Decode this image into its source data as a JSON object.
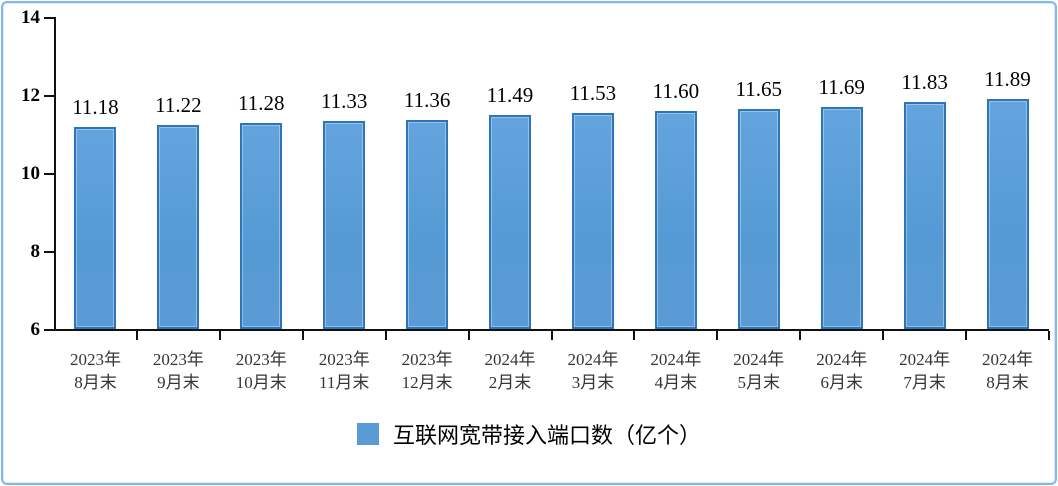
{
  "chart_data": {
    "type": "bar",
    "title": "",
    "categories": [
      "2023年8月末",
      "2023年9月末",
      "2023年10月末",
      "2023年11月末",
      "2023年12月末",
      "2024年2月末",
      "2024年3月末",
      "2024年4月末",
      "2024年5月末",
      "2024年6月末",
      "2024年7月末",
      "2024年8月末"
    ],
    "values": [
      11.18,
      11.22,
      11.28,
      11.33,
      11.36,
      11.49,
      11.53,
      11.6,
      11.65,
      11.69,
      11.83,
      11.89
    ],
    "series_name": "互联网宽带接入端口数（亿个）",
    "xlabel": "",
    "ylabel": "",
    "ylim": [
      6,
      14
    ],
    "yticks": [
      6,
      8,
      10,
      12,
      14
    ],
    "grid": false,
    "legend_position": "bottom",
    "value_labels_shown": true,
    "value_label_decimals": 2
  },
  "colors": {
    "bar_fill": "#5b9bd5",
    "bar_border": "#2e75b6",
    "axis": "#111111",
    "frame_border": "#85b8e9",
    "legend_swatch": "#5b9bd5",
    "x_label_text": "#353535",
    "value_label_text": "#000000"
  },
  "legend": {
    "label": "互联网宽带接入端口数（亿个）",
    "swatch": "legend-color-square"
  }
}
